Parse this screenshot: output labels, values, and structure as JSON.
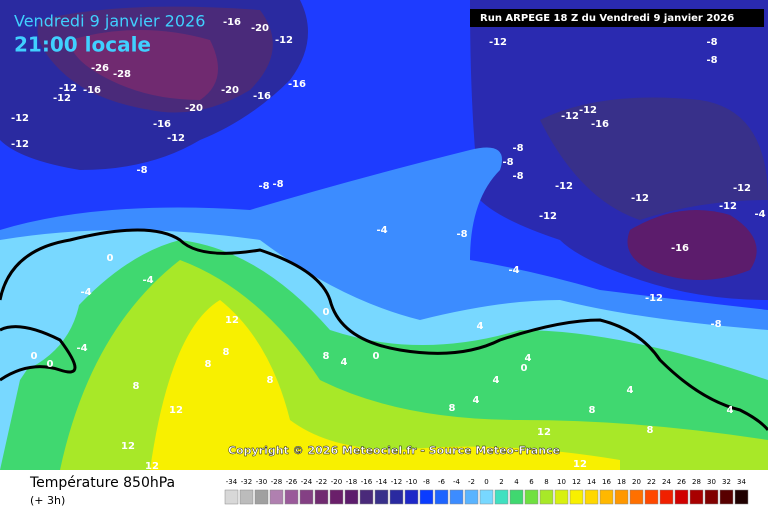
{
  "header": {
    "date": "Vendredi 9 janvier 2026",
    "time": "21:00 locale",
    "run": "Run ARPEGE 18 Z du Vendredi 9 janvier 2026"
  },
  "copyright": "Copyright © 2026 Meteociel.fr - Source Meteo-France",
  "contour_labels": [
    -12,
    -8,
    -8,
    -12,
    -20,
    -16,
    -26,
    -28,
    -12,
    -16,
    -12,
    -20,
    -16,
    -16,
    -20,
    -12,
    -16,
    -12,
    -12,
    -12,
    -12,
    -16,
    -8,
    -8,
    -8,
    -12,
    -12,
    -12,
    -12,
    -4,
    -12,
    -8,
    -8,
    -8,
    -4,
    -8,
    -16,
    -4,
    -12,
    -8,
    0,
    -4,
    -4,
    -4,
    0,
    0,
    12,
    8,
    8,
    8,
    8,
    12,
    8,
    4,
    0,
    4,
    0,
    4,
    4,
    0,
    4,
    8,
    4,
    8,
    12,
    8,
    4,
    12,
    12,
    12
  ],
  "legend": {
    "title": "Température 850hPa",
    "subtitle": "(+ 3h)",
    "ticks": [
      -34,
      -32,
      -30,
      -28,
      -26,
      -24,
      -22,
      -20,
      -18,
      -16,
      -14,
      -12,
      -10,
      -8,
      -6,
      -4,
      -2,
      0,
      2,
      4,
      6,
      8,
      10,
      12,
      14,
      16,
      18,
      20,
      22,
      24,
      26,
      28,
      30,
      32,
      34
    ],
    "colors": [
      "#d8d8d8",
      "#bcbcbc",
      "#a0a0a0",
      "#b080b0",
      "#9a5a9a",
      "#844084",
      "#702a70",
      "#6a1f6a",
      "#5c1c6c",
      "#4a2a7a",
      "#38308a",
      "#2a2aa0",
      "#1e28c8",
      "#0a3cff",
      "#1e64ff",
      "#3c8cff",
      "#5ab4ff",
      "#78d8ff",
      "#40e0c0",
      "#40d870",
      "#70e040",
      "#a8e828",
      "#d8f010",
      "#f8f000",
      "#ffd800",
      "#ffb800",
      "#ff9800",
      "#ff7000",
      "#ff4800",
      "#f02000",
      "#d00000",
      "#a80000",
      "#800000",
      "#580000",
      "#200000"
    ]
  }
}
